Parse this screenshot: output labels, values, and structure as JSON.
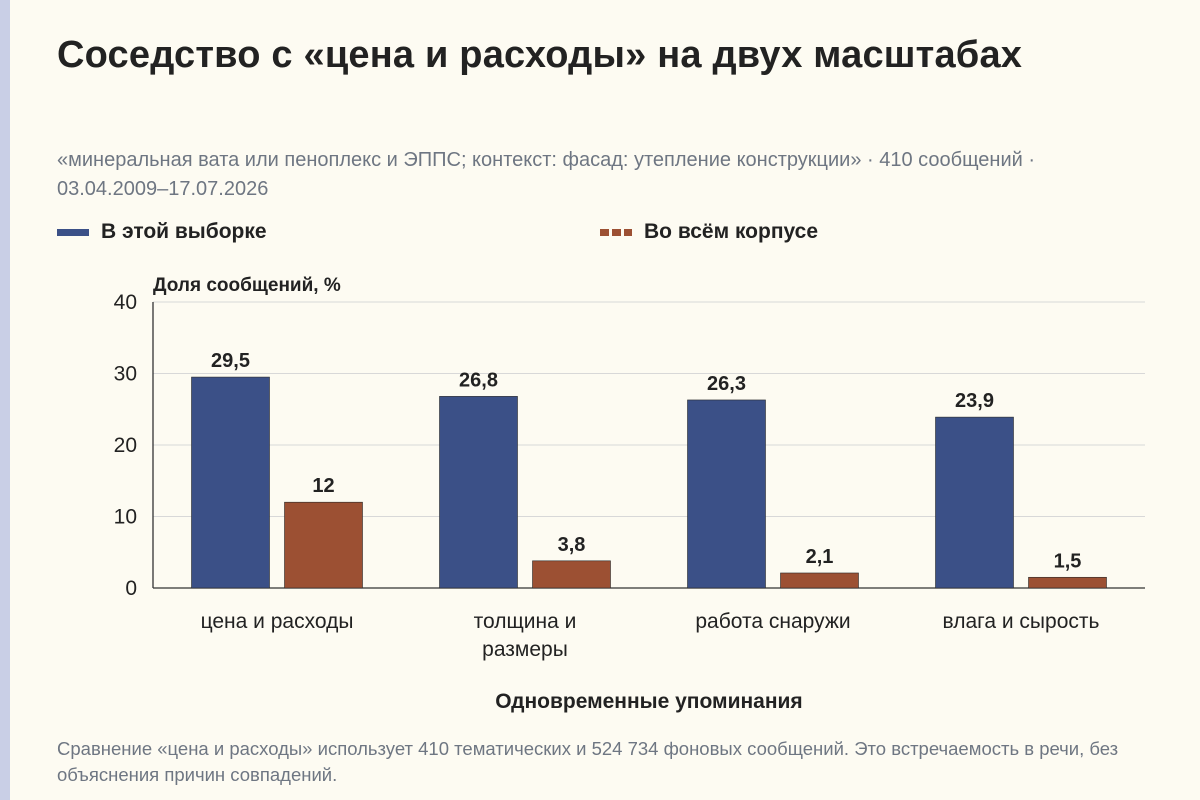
{
  "title": "Соседство с «цена и расходы» на двух масштабах",
  "subtitle": "«минеральная вата или пеноплекс и ЭППС; контекст: фасад: утепление конструкции» · 410 сообщений · 03.04.2009–17.07.2026",
  "footer": "Сравнение «цена и расходы» использует 410 тематических и 524 734 фоновых сообщений. Это встречаемость в речи, без объяснения причин совпадений.",
  "colors": {
    "series_a": "#3b5087",
    "series_b": "#9c5033",
    "grid": "#d8d8d8",
    "axis": "#333333"
  },
  "chart_data": {
    "type": "bar",
    "ylabel": "Доля сообщений, %",
    "xlabel": "Одновременные упоминания",
    "ylim": [
      0,
      40
    ],
    "yticks": [
      0,
      10,
      20,
      30,
      40
    ],
    "grid": true,
    "legend_position": "top-left",
    "categories": [
      [
        "цена и расходы"
      ],
      [
        "толщина и",
        "размеры"
      ],
      [
        "работа снаружи"
      ],
      [
        "влага и сырость"
      ]
    ],
    "series": [
      {
        "name": "В этой выборке",
        "values": [
          29.5,
          26.8,
          26.3,
          23.9
        ],
        "labels": [
          "29,5",
          "26,8",
          "26,3",
          "23,9"
        ]
      },
      {
        "name": "Во всём корпусе",
        "values": [
          12,
          3.8,
          2.1,
          1.5
        ],
        "labels": [
          "12",
          "3,8",
          "2,1",
          "1,5"
        ]
      }
    ]
  }
}
